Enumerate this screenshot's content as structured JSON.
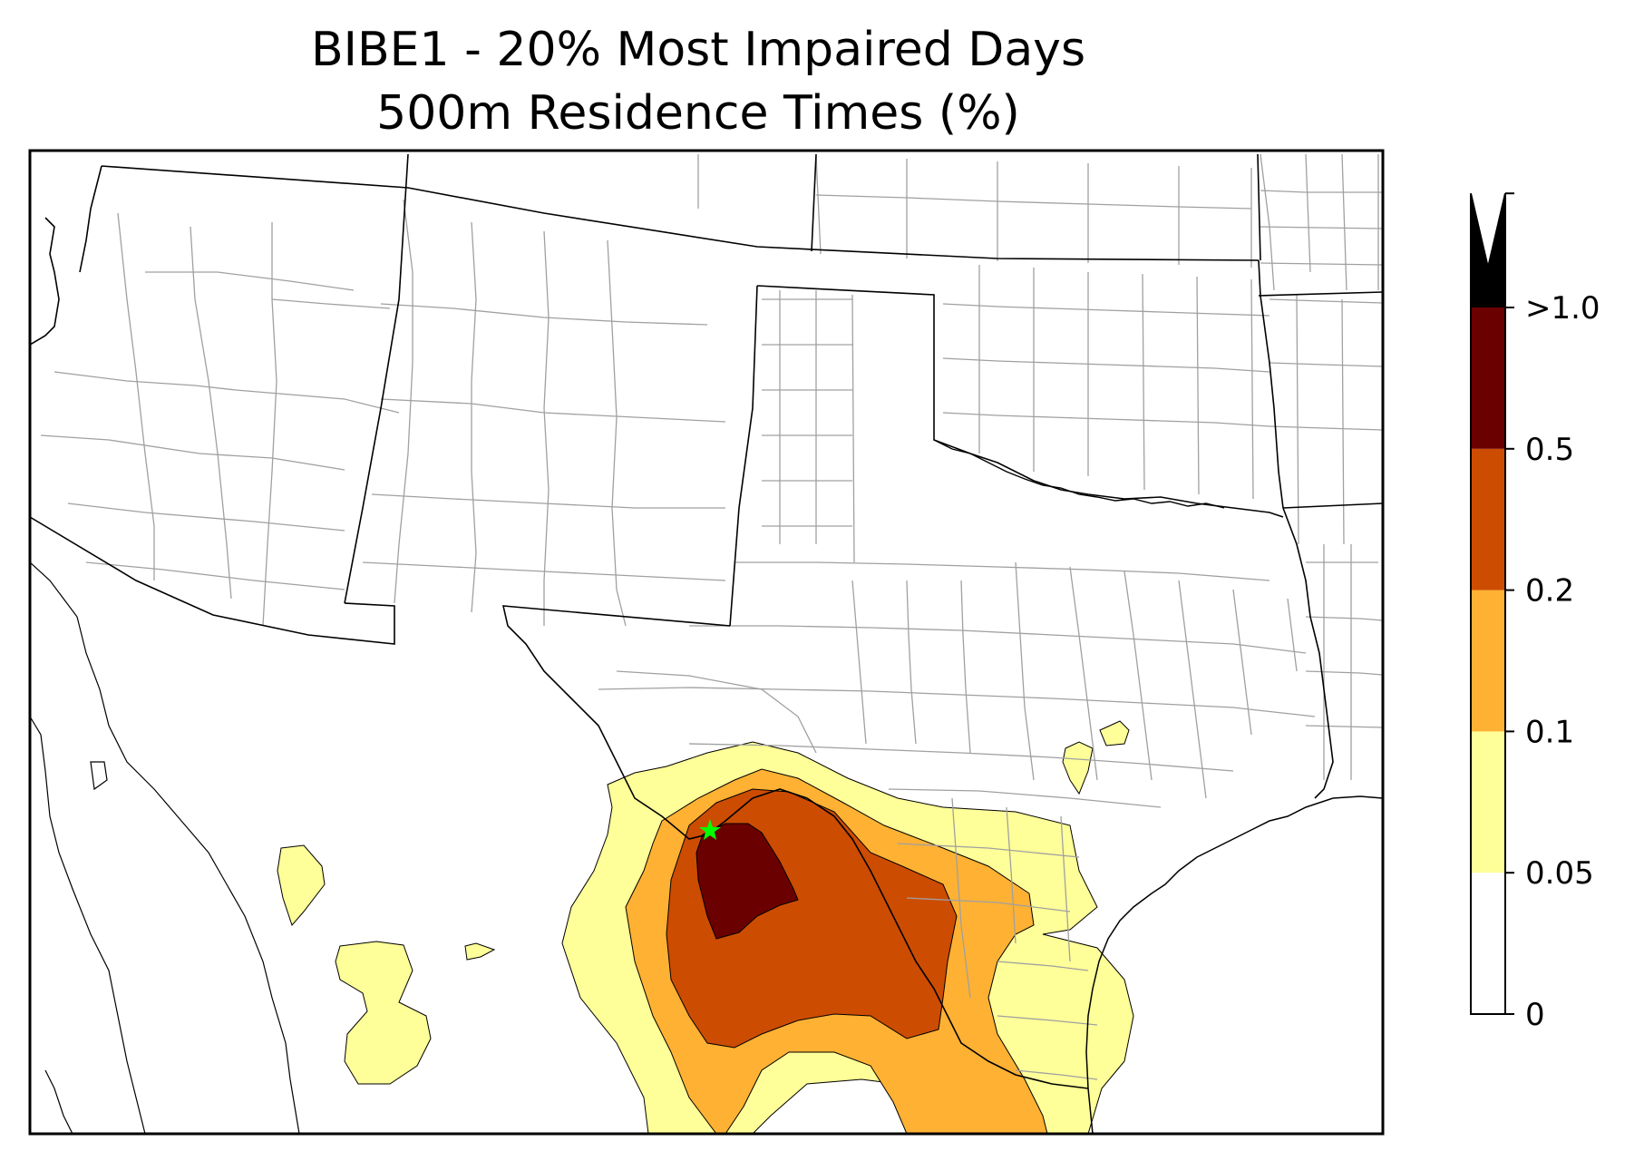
{
  "title": {
    "line1": "BIBE1 - 20% Most Impaired Days",
    "line2": "500m Residence Times (%)"
  },
  "map": {
    "region": "Southwestern United States and northern Mexico",
    "site_marker": {
      "symbol": "star",
      "color": "#00ff00"
    },
    "colors": {
      "state_border": "#000000",
      "county_border": "#a0a0a0",
      "coast": "#000000"
    }
  },
  "colorbar": {
    "extend": "max",
    "levels": [
      {
        "from": "0",
        "to": "0.05",
        "color": "#ffffff"
      },
      {
        "from": "0.05",
        "to": "0.1",
        "color": "#ffff99"
      },
      {
        "from": "0.1",
        "to": "0.2",
        "color": "#feb133"
      },
      {
        "from": "0.2",
        "to": "0.5",
        "color": "#cc4c02"
      },
      {
        "from": "0.5",
        "to": ">1.0",
        "color": "#6b0000"
      },
      {
        "from": ">1.0",
        "to": "max",
        "color": "#000000"
      }
    ],
    "tick_labels": [
      "0",
      "0.05",
      "0.1",
      "0.2",
      "0.5",
      ">1.0"
    ]
  }
}
